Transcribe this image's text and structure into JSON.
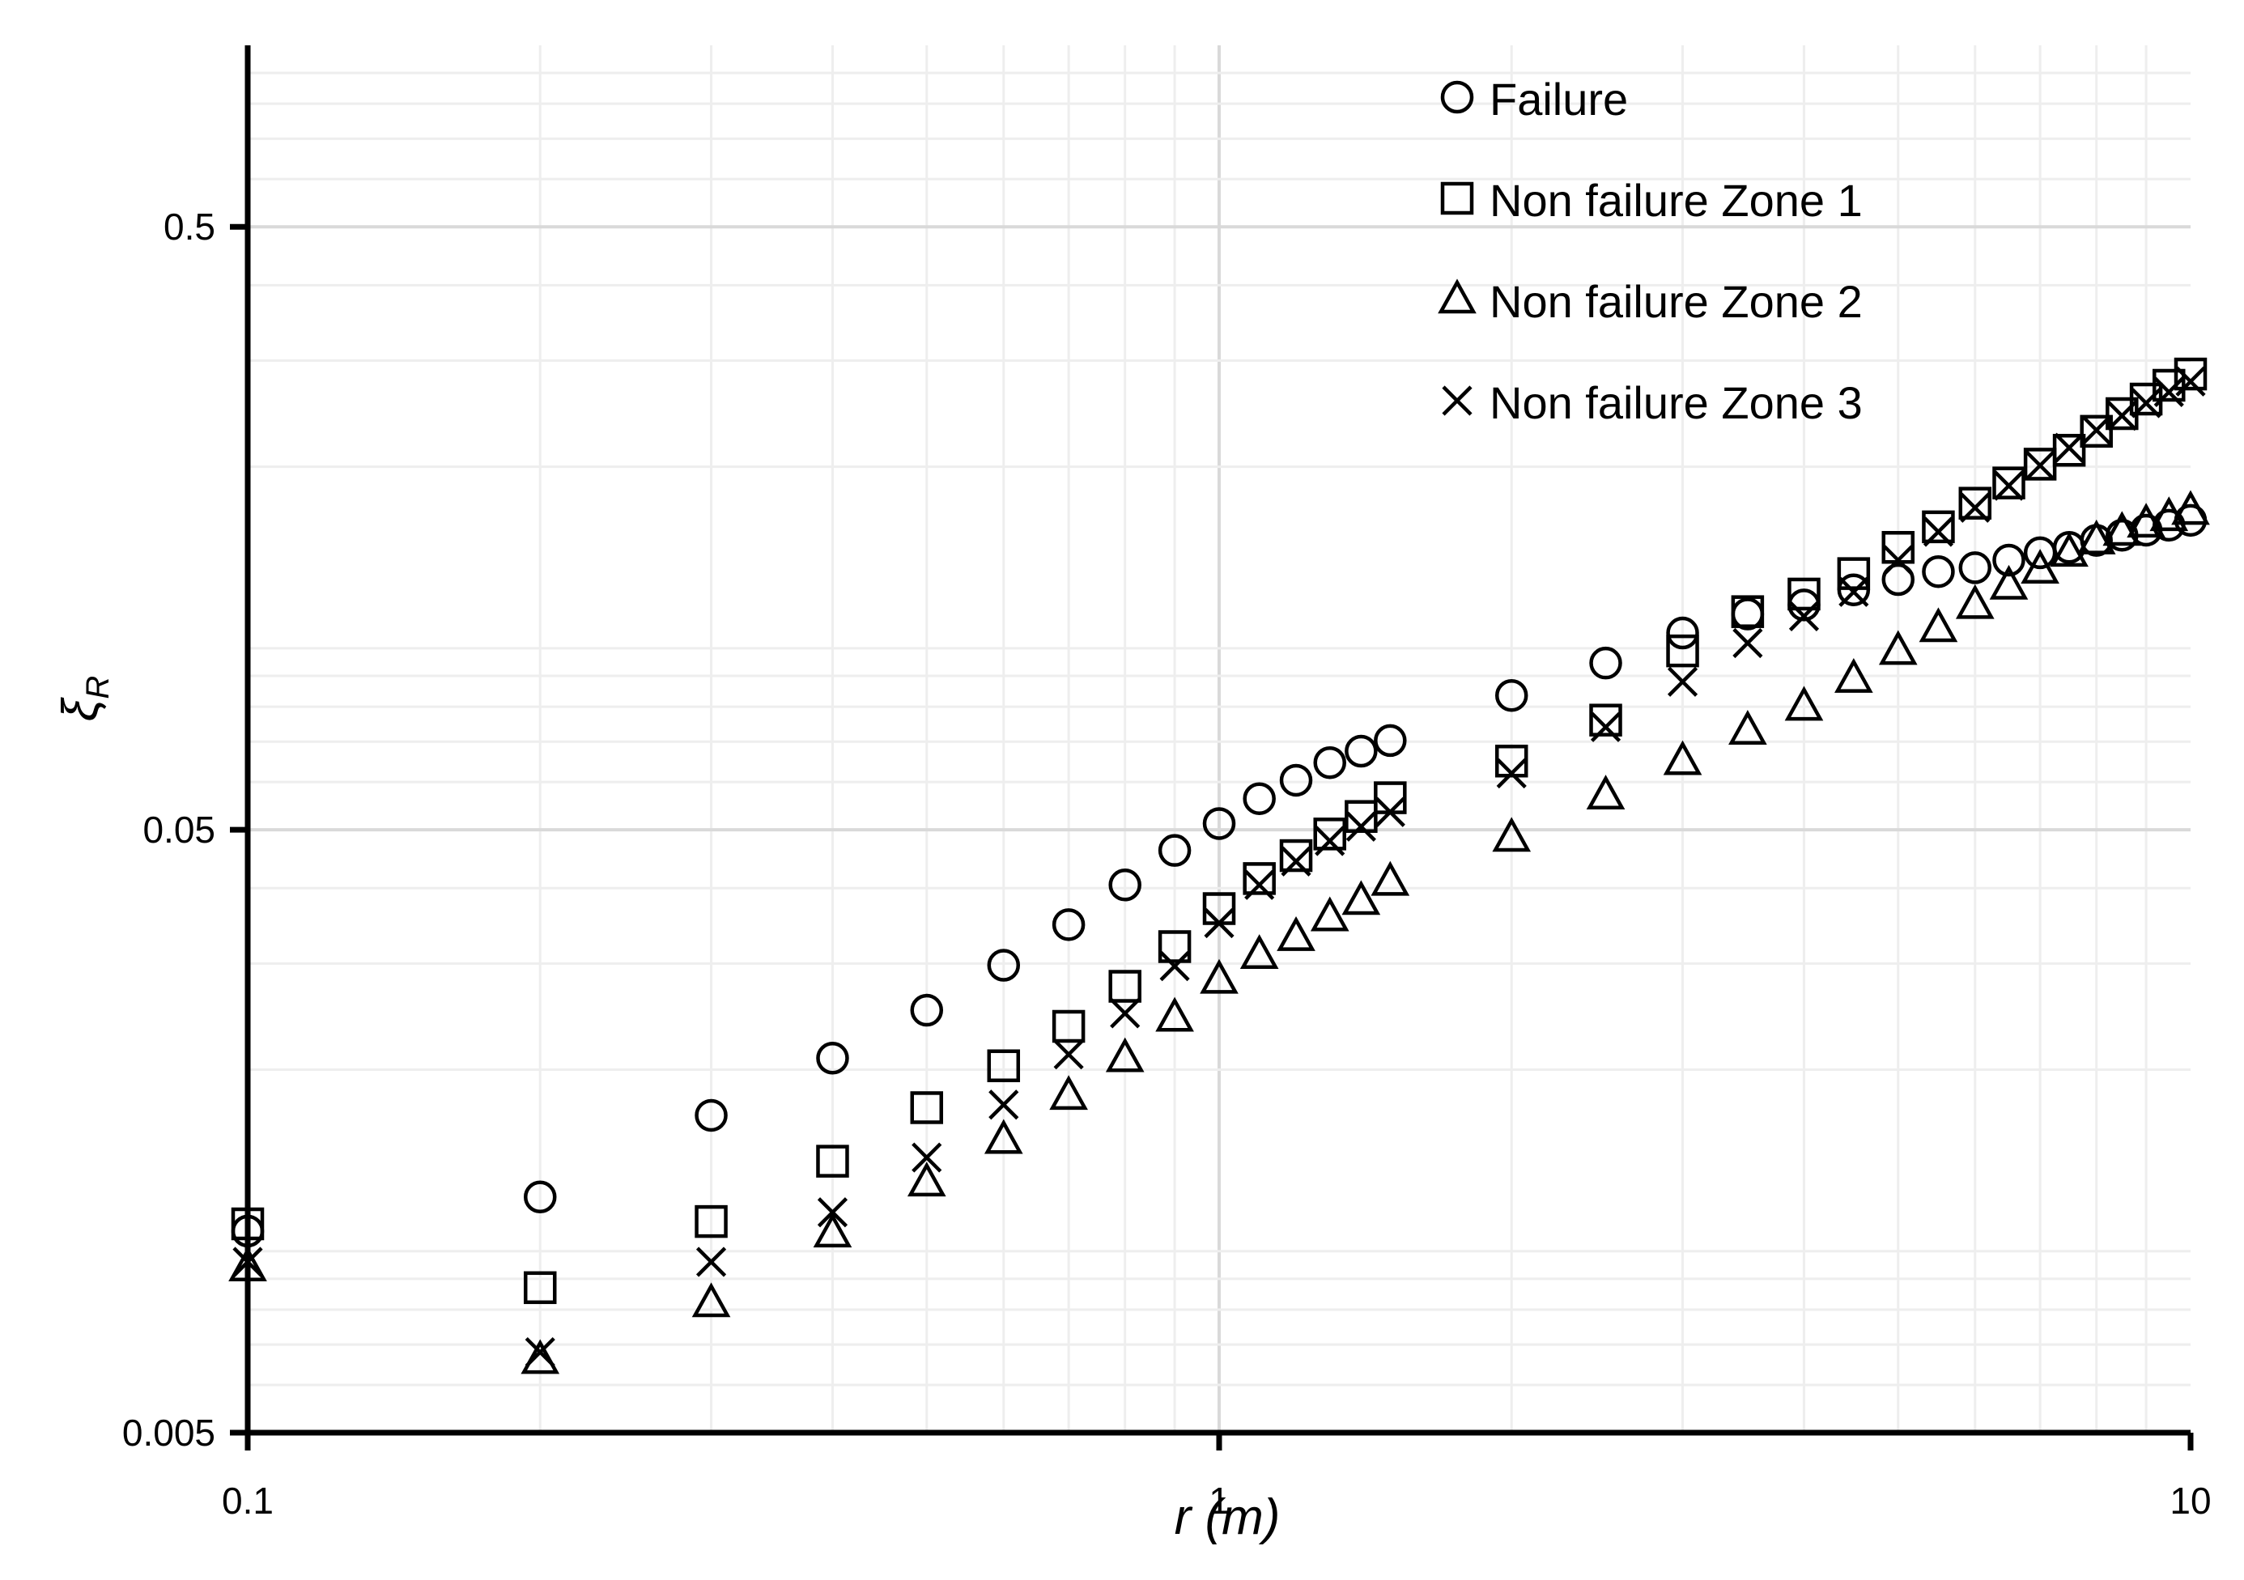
{
  "chart_data": {
    "type": "scatter",
    "xlabel": "r (m)",
    "ylabel": "ξ_R",
    "ylabel_main": "ξ",
    "ylabel_sub": "R",
    "x_scale": "log",
    "y_scale": "log",
    "xlim": [
      0.1,
      10
    ],
    "ylim": [
      0.005,
      1.0
    ],
    "x_ticks": [
      {
        "value": 0.1,
        "label": "0.1"
      },
      {
        "value": 1,
        "label": "1"
      },
      {
        "value": 10,
        "label": "10"
      }
    ],
    "y_ticks": [
      {
        "value": 0.005,
        "label": "0.005"
      },
      {
        "value": 0.05,
        "label": "0.05"
      },
      {
        "value": 0.5,
        "label": "0.5"
      }
    ],
    "grid": true,
    "legend_position": "top-right",
    "series": [
      {
        "name": "Failure",
        "marker": "circle",
        "points": [
          [
            0.1,
            0.0108
          ],
          [
            0.2,
            0.0123
          ],
          [
            0.3,
            0.0168
          ],
          [
            0.4,
            0.0209
          ],
          [
            0.5,
            0.0251
          ],
          [
            0.6,
            0.0298
          ],
          [
            0.7,
            0.0348
          ],
          [
            0.8,
            0.0405
          ],
          [
            0.9,
            0.0462
          ],
          [
            1.0,
            0.0512
          ],
          [
            1.1,
            0.0563
          ],
          [
            1.2,
            0.0604
          ],
          [
            1.3,
            0.0646
          ],
          [
            1.4,
            0.0675
          ],
          [
            1.5,
            0.0703
          ],
          [
            2.0,
            0.0835
          ],
          [
            2.5,
            0.0945
          ],
          [
            3.0,
            0.106
          ],
          [
            3.5,
            0.114
          ],
          [
            4.0,
            0.118
          ],
          [
            4.5,
            0.125
          ],
          [
            5.0,
            0.13
          ],
          [
            5.5,
            0.134
          ],
          [
            6.0,
            0.136
          ],
          [
            6.5,
            0.14
          ],
          [
            7.0,
            0.144
          ],
          [
            7.5,
            0.147
          ],
          [
            8.0,
            0.151
          ],
          [
            8.5,
            0.154
          ],
          [
            9.0,
            0.157
          ],
          [
            9.5,
            0.16
          ],
          [
            10.0,
            0.163
          ]
        ]
      },
      {
        "name": "Non failure Zone 1",
        "marker": "square",
        "points": [
          [
            0.1,
            0.0111
          ],
          [
            0.2,
            0.0087
          ],
          [
            0.3,
            0.0112
          ],
          [
            0.4,
            0.0141
          ],
          [
            0.5,
            0.0173
          ],
          [
            0.6,
            0.0203
          ],
          [
            0.7,
            0.0236
          ],
          [
            0.8,
            0.0275
          ],
          [
            0.9,
            0.032
          ],
          [
            1.0,
            0.037
          ],
          [
            1.1,
            0.0415
          ],
          [
            1.2,
            0.0453
          ],
          [
            1.3,
            0.0492
          ],
          [
            1.4,
            0.0526
          ],
          [
            1.5,
            0.0565
          ],
          [
            2.0,
            0.065
          ],
          [
            2.5,
            0.076
          ],
          [
            3.0,
            0.099
          ],
          [
            3.5,
            0.115
          ],
          [
            4.0,
            0.123
          ],
          [
            4.5,
            0.133
          ],
          [
            5.0,
            0.147
          ],
          [
            5.5,
            0.159
          ],
          [
            6.0,
            0.174
          ],
          [
            6.5,
            0.188
          ],
          [
            7.0,
            0.202
          ],
          [
            7.5,
            0.213
          ],
          [
            8.0,
            0.229
          ],
          [
            8.5,
            0.245
          ],
          [
            9.0,
            0.259
          ],
          [
            9.5,
            0.273
          ],
          [
            10.0,
            0.285
          ]
        ]
      },
      {
        "name": "Non failure Zone 2",
        "marker": "triangle",
        "points": [
          [
            0.1,
            0.0094
          ],
          [
            0.2,
            0.0066
          ],
          [
            0.3,
            0.0082
          ],
          [
            0.4,
            0.0107
          ],
          [
            0.5,
            0.013
          ],
          [
            0.6,
            0.0153
          ],
          [
            0.7,
            0.0181
          ],
          [
            0.8,
            0.0209
          ],
          [
            0.9,
            0.0244
          ],
          [
            1.0,
            0.0282
          ],
          [
            1.1,
            0.031
          ],
          [
            1.2,
            0.0332
          ],
          [
            1.3,
            0.0358
          ],
          [
            1.4,
            0.0381
          ],
          [
            1.5,
            0.041
          ],
          [
            2.0,
            0.0485
          ],
          [
            2.5,
            0.057
          ],
          [
            3.0,
            0.065
          ],
          [
            3.5,
            0.073
          ],
          [
            4.0,
            0.08
          ],
          [
            4.5,
            0.089
          ],
          [
            5.0,
            0.099
          ],
          [
            5.5,
            0.108
          ],
          [
            6.0,
            0.118
          ],
          [
            6.5,
            0.127
          ],
          [
            7.0,
            0.135
          ],
          [
            7.5,
            0.144
          ],
          [
            8.0,
            0.151
          ],
          [
            8.5,
            0.156
          ],
          [
            9.0,
            0.161
          ],
          [
            9.5,
            0.165
          ],
          [
            10.0,
            0.169
          ]
        ]
      },
      {
        "name": "Non failure Zone 3",
        "marker": "x",
        "points": [
          [
            0.1,
            0.0096
          ],
          [
            0.2,
            0.0068
          ],
          [
            0.3,
            0.0096
          ],
          [
            0.4,
            0.0116
          ],
          [
            0.5,
            0.0143
          ],
          [
            0.6,
            0.0175
          ],
          [
            0.7,
            0.0212
          ],
          [
            0.8,
            0.0248
          ],
          [
            0.9,
            0.0297
          ],
          [
            1.0,
            0.035
          ],
          [
            1.1,
            0.0405
          ],
          [
            1.2,
            0.0443
          ],
          [
            1.3,
            0.0479
          ],
          [
            1.4,
            0.0506
          ],
          [
            1.5,
            0.0535
          ],
          [
            2.0,
            0.062
          ],
          [
            2.5,
            0.074
          ],
          [
            3.0,
            0.088
          ],
          [
            3.5,
            0.102
          ],
          [
            4.0,
            0.113
          ],
          [
            4.5,
            0.124
          ],
          [
            5.0,
            0.14
          ],
          [
            5.5,
            0.156
          ],
          [
            6.0,
            0.171
          ],
          [
            6.5,
            0.186
          ],
          [
            7.0,
            0.201
          ],
          [
            7.5,
            0.215
          ],
          [
            8.0,
            0.23
          ],
          [
            8.5,
            0.243
          ],
          [
            9.0,
            0.255
          ],
          [
            9.5,
            0.266
          ],
          [
            10.0,
            0.277
          ]
        ]
      }
    ]
  }
}
